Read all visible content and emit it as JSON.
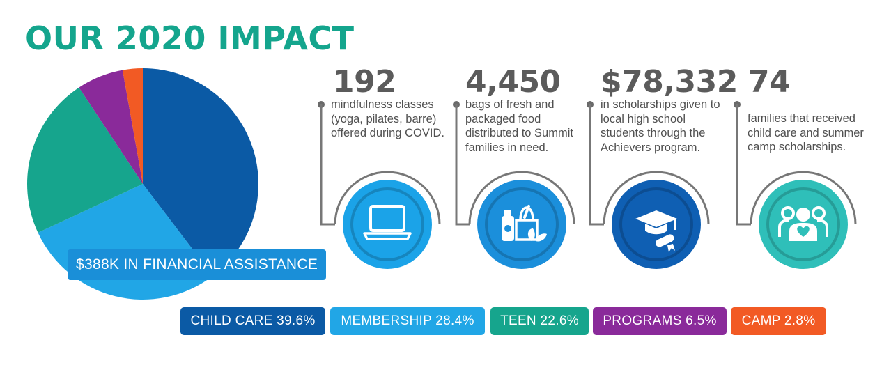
{
  "title": "OUR 2020 IMPACT",
  "callout": "$388K IN FINANCIAL ASSISTANCE",
  "stats": [
    {
      "number": "192",
      "description": "mindfulness classes (yoga, pilates, barre) offered during COVID.",
      "icon": "laptop-icon",
      "color": "#1ba3e8"
    },
    {
      "number": "4,450",
      "description": "bags of fresh and packaged food distributed to Summit families in need.",
      "icon": "groceries-icon",
      "color": "#1b8fdb"
    },
    {
      "number": "$78,332",
      "description": "in scholarships given to local high school students through the Achievers program.",
      "icon": "graduation-cap-icon",
      "color": "#0f5fb3"
    },
    {
      "number": "74",
      "description": "families that received child care and summer camp scholarships.",
      "icon": "family-heart-icon",
      "color": "#2fbfb9"
    }
  ],
  "legend": [
    {
      "label": "CHILD CARE 39.6%",
      "color": "#0b5aa5"
    },
    {
      "label": "MEMBERSHIP 28.4%",
      "color": "#21a6e6"
    },
    {
      "label": "TEEN 22.6%",
      "color": "#16a58d"
    },
    {
      "label": "PROGRAMS 6.5%",
      "color": "#8a2a9a"
    },
    {
      "label": "CAMP 2.8%",
      "color": "#f25a24"
    }
  ],
  "chart_data": {
    "type": "pie",
    "title": "OUR 2020 IMPACT",
    "total_label": "$388K IN FINANCIAL ASSISTANCE",
    "categories": [
      "CHILD CARE",
      "MEMBERSHIP",
      "TEEN",
      "PROGRAMS",
      "CAMP"
    ],
    "values": [
      39.6,
      28.4,
      22.6,
      6.5,
      2.8
    ],
    "colors": [
      "#0b5aa5",
      "#21a6e6",
      "#16a58d",
      "#8a2a9a",
      "#f25a24"
    ]
  }
}
